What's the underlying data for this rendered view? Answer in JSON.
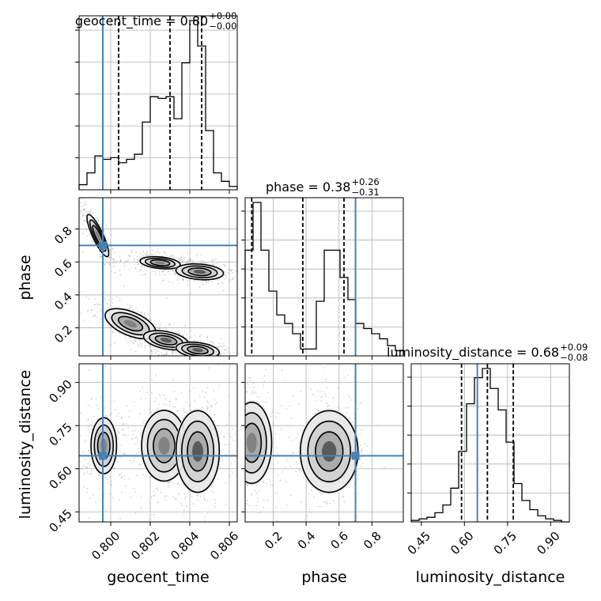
{
  "chart_data": {
    "type": "corner",
    "parameters": [
      "geocent_time",
      "phase",
      "luminosity_distance"
    ],
    "truths": {
      "geocent_time": 0.7996,
      "phase": 0.7,
      "luminosity_distance": 0.645
    },
    "colors": {
      "truth": "#4682b4",
      "hist": "#000000",
      "quantile": "#000000",
      "scatter": "#888888"
    },
    "grid": true,
    "titles": [
      {
        "param": "geocent_time",
        "text": "geocent_time = 0.80",
        "sup": "+0.00",
        "sub": "−0.00"
      },
      {
        "param": "phase",
        "text": "phase = 0.38",
        "sup": "+0.26",
        "sub": "−0.31"
      },
      {
        "param": "luminosity_distance",
        "text": "luminosity_distance = 0.68",
        "sup": "+0.09",
        "sub": "−0.08"
      }
    ],
    "axes": {
      "geocent_time": {
        "range": [
          0.7984,
          0.8064
        ],
        "ticks": [
          0.8,
          0.802,
          0.804,
          0.806
        ],
        "tick_labels": [
          "0.800",
          "0.802",
          "0.804",
          "0.806"
        ],
        "label": "geocent_time"
      },
      "phase": {
        "range": [
          0.03,
          0.99
        ],
        "ticks": [
          0.2,
          0.4,
          0.6,
          0.8
        ],
        "tick_labels": [
          "0.2",
          "0.4",
          "0.6",
          "0.8"
        ],
        "label": "phase"
      },
      "luminosity_distance": {
        "range": [
          0.415,
          0.965
        ],
        "ticks": [
          0.45,
          0.6,
          0.75,
          0.9
        ],
        "tick_labels": [
          "0.45",
          "0.60",
          "0.75",
          "0.90"
        ],
        "label": "luminosity_distance"
      }
    },
    "histograms": {
      "geocent_time": {
        "quantiles": [
          0.8004,
          0.803,
          0.8046
        ],
        "edges": [
          0.7984,
          0.7988,
          0.7992,
          0.7996,
          0.8,
          0.8004,
          0.8008,
          0.8012,
          0.8016,
          0.802,
          0.8024,
          0.8028,
          0.8032,
          0.8036,
          0.804,
          0.8044,
          0.8048,
          0.8052,
          0.8056,
          0.806,
          0.8064
        ],
        "counts": [
          3,
          10,
          20,
          18,
          19,
          16,
          18,
          21,
          40,
          55,
          54,
          55,
          42,
          75,
          100,
          85,
          35,
          10,
          5,
          2
        ]
      },
      "phase": {
        "quantiles": [
          0.07,
          0.38,
          0.63
        ],
        "edges": [
          0.03,
          0.078,
          0.126,
          0.174,
          0.222,
          0.27,
          0.318,
          0.366,
          0.414,
          0.462,
          0.51,
          0.558,
          0.606,
          0.654,
          0.702,
          0.75,
          0.798,
          0.846,
          0.894,
          0.942,
          0.99
        ],
        "counts": [
          62,
          90,
          62,
          38,
          24,
          19,
          13,
          4,
          4,
          32,
          62,
          62,
          46,
          33,
          19,
          16,
          13,
          10,
          6,
          3
        ]
      },
      "luminosity_distance": {
        "quantiles": [
          0.59,
          0.68,
          0.77
        ],
        "edges": [
          0.415,
          0.4425,
          0.47,
          0.4975,
          0.525,
          0.5525,
          0.58,
          0.6075,
          0.635,
          0.6625,
          0.69,
          0.7175,
          0.745,
          0.7725,
          0.8,
          0.8275,
          0.855,
          0.8825,
          0.91,
          0.9375,
          0.965
        ],
        "counts": [
          1,
          2,
          3,
          6,
          11,
          22,
          46,
          77,
          94,
          100,
          87,
          73,
          52,
          25,
          14,
          8,
          4,
          2,
          1,
          0
        ]
      }
    },
    "density_blobs": {
      "phase_vs_geocent_time": [
        {
          "x": 0.79935,
          "y": 0.76,
          "sx": 0.0003,
          "sy": 0.07,
          "rho": -0.85,
          "w": 0.7
        },
        {
          "x": 0.8025,
          "y": 0.595,
          "sx": 0.0006,
          "sy": 0.022,
          "rho": -0.3,
          "w": 0.6
        },
        {
          "x": 0.8045,
          "y": 0.54,
          "sx": 0.00055,
          "sy": 0.022,
          "rho": -0.2,
          "w": 1.0
        },
        {
          "x": 0.801,
          "y": 0.225,
          "sx": 0.0007,
          "sy": 0.05,
          "rho": -0.55,
          "w": 0.7
        },
        {
          "x": 0.8028,
          "y": 0.125,
          "sx": 0.00055,
          "sy": 0.028,
          "rho": -0.4,
          "w": 0.9
        },
        {
          "x": 0.8044,
          "y": 0.065,
          "sx": 0.0005,
          "sy": 0.022,
          "rho": -0.3,
          "w": 1.0
        }
      ],
      "luminosity_distance_vs_geocent_time": [
        {
          "x": 0.79965,
          "y": 0.68,
          "sx": 0.0004,
          "sy": 0.06,
          "rho": 0.0,
          "w": 0.55
        },
        {
          "x": 0.8027,
          "y": 0.68,
          "sx": 0.0006,
          "sy": 0.065,
          "rho": 0.0,
          "w": 0.75
        },
        {
          "x": 0.8044,
          "y": 0.66,
          "sx": 0.0005,
          "sy": 0.065,
          "rho": 0.0,
          "w": 1.0
        }
      ],
      "luminosity_distance_vs_phase": [
        {
          "x": 0.07,
          "y": 0.69,
          "sx": 0.06,
          "sy": 0.07,
          "rho": 0.0,
          "w": 0.85
        },
        {
          "x": 0.54,
          "y": 0.66,
          "sx": 0.08,
          "sy": 0.065,
          "rho": 0.0,
          "w": 1.0
        }
      ]
    }
  }
}
